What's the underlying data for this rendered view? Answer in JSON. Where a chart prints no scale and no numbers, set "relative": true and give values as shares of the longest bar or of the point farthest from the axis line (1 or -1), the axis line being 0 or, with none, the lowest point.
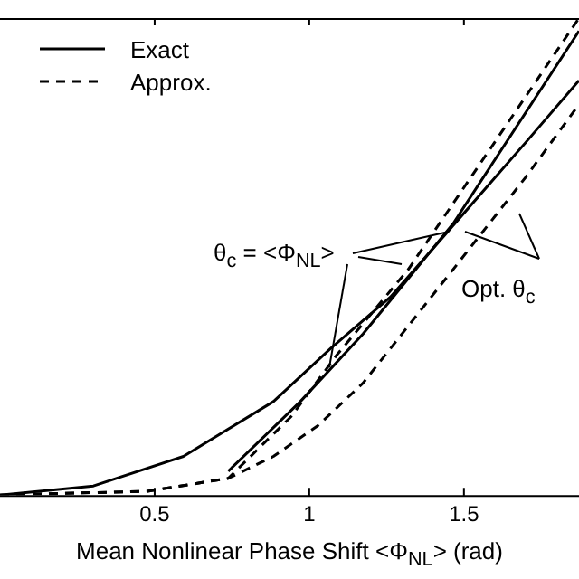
{
  "chart_data": {
    "type": "line",
    "xlabel": "Mean Nonlinear Phase Shift <Φ$_{NL}$> (rad)",
    "relative": true,
    "xlim": [
      0,
      1.872
    ],
    "xticks": [
      0.5,
      1,
      1.5
    ],
    "legend": "top left",
    "grid": false,
    "marker": "none",
    "series": [
      {
        "name": "Exact",
        "color": "#000000",
        "line_style": "solid",
        "x": [
          0,
          0.302,
          0.593,
          0.884,
          1.07,
          1.262,
          1.465,
          1.698,
          1.872
        ],
        "values": [
          0,
          0.019,
          0.081,
          0.196,
          0.308,
          0.415,
          0.565,
          0.738,
          0.869
        ]
      },
      {
        "color": "#000000",
        "line_style": "solid",
        "x": [
          0.738,
          0.971,
          1.174,
          1.465,
          1.872
        ],
        "values": [
          0.05,
          0.196,
          0.338,
          0.569,
          0.973
        ]
      },
      {
        "name": "Approx.",
        "color": "#000000",
        "line_style": "dashed",
        "x": [
          0,
          0.477,
          0.738,
          0.942,
          1.087,
          1.32,
          1.872
        ],
        "values": [
          0,
          0.008,
          0.035,
          0.165,
          0.292,
          0.473,
          1
        ]
      },
      {
        "color": "#000000",
        "line_style": "dashed",
        "x": [
          0,
          0.477,
          0.738,
          0.884,
          1.029,
          1.174,
          1.465,
          1.698,
          1.872
        ],
        "values": [
          0,
          0.008,
          0.035,
          0.081,
          0.146,
          0.235,
          0.473,
          0.665,
          0.819
        ]
      }
    ],
    "annotations": [
      "θ$_{c}$ = <Φ$_{NL}$>",
      "Opt. θ$_{c}$"
    ]
  }
}
